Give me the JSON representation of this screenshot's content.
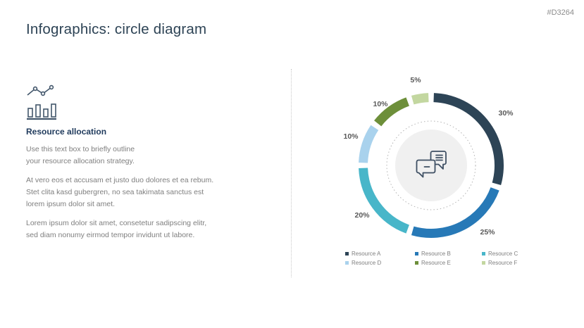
{
  "slide": {
    "title": "Infographics: circle diagram",
    "code": "#D3264"
  },
  "left": {
    "icon": "bar-line-chart-icon",
    "heading": "Resource allocation",
    "paragraphs": {
      "p1": "Use this text box to briefly outline\nyour resource allocation strategy.",
      "p2": "At vero eos et accusam et justo duo dolores et ea rebum.\nStet clita kasd gubergren, no sea takimata sanctus est\nlorem ipsum dolor sit amet.",
      "p3": "Lorem ipsum dolor sit amet, consetetur sadipscing elitr,\nsed diam nonumy eirmod tempor invidunt ut labore."
    }
  },
  "chart_data": {
    "type": "pie",
    "subtype": "donut",
    "title": "",
    "labels": [
      "Resource A",
      "Resource B",
      "Resource C",
      "Resource D",
      "Resource E",
      "Resource F"
    ],
    "values": [
      30,
      25,
      20,
      10,
      10,
      5
    ],
    "value_labels": [
      "30%",
      "25%",
      "20%",
      "10%",
      "10%",
      "5%"
    ],
    "colors": [
      "#2d4456",
      "#2779b7",
      "#48b6c9",
      "#a9d2ed",
      "#6d8f3a",
      "#c3d7a0"
    ],
    "start_angle_deg": 0,
    "direction": "clockwise",
    "legend_position": "bottom",
    "center_icon": "chat-bubbles-icon",
    "accent_grays": {
      "inner_circle_fill": "#f0f0f0",
      "dotted_ring_stroke": "#b3b3b3",
      "icon_stroke": "#3e4f63"
    }
  }
}
